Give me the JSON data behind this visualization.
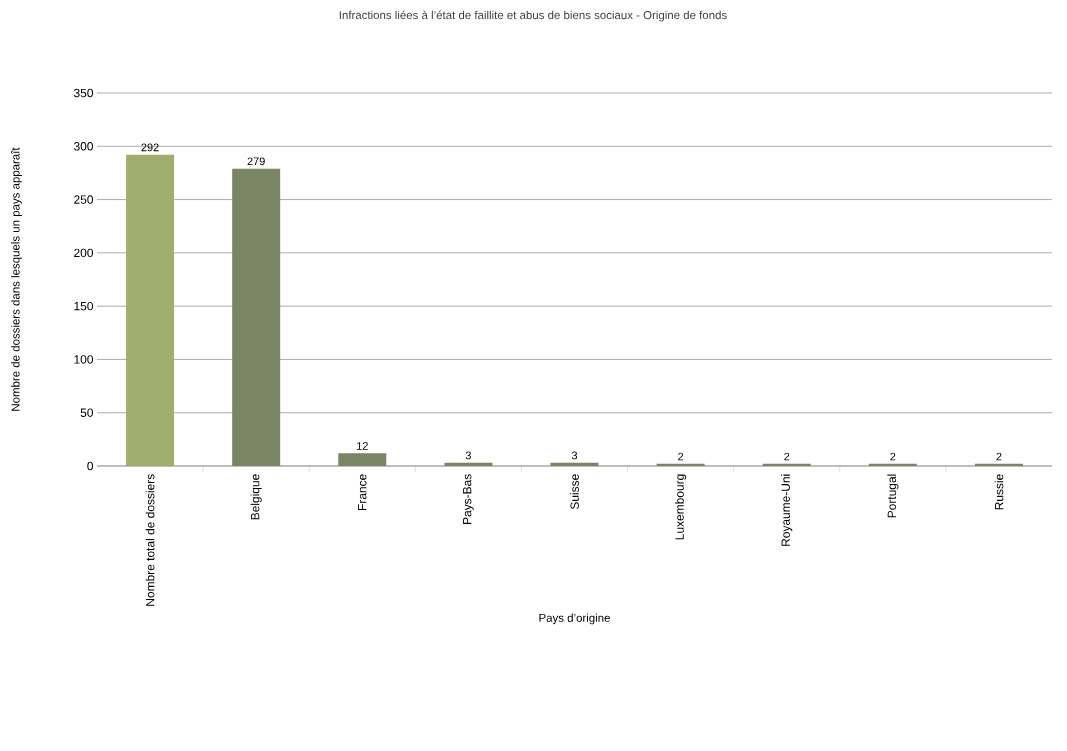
{
  "chart_data": {
    "type": "bar",
    "title": "Infractions liées à l’état de faillite et abus de biens sociaux - Origine de fonds",
    "xlabel": "Pays d’origine",
    "ylabel": "Nombre de dossiers dans lesquels un pays apparaît",
    "categories": [
      "Nombre total de dossiers",
      "Belgique",
      "France",
      "Pays-Bas",
      "Suisse",
      "Luxembourg",
      "Royaume-Uni",
      "Portugal",
      "Russie"
    ],
    "values": [
      292,
      279,
      12,
      3,
      3,
      2,
      2,
      2,
      2
    ],
    "colors": [
      "#a0ad6e",
      "#7a8566",
      "#7a8566",
      "#7a8566",
      "#7a8566",
      "#7a8566",
      "#7a8566",
      "#7a8566",
      "#7a8566"
    ],
    "ylim": [
      0,
      350
    ],
    "yticks": [
      0,
      50,
      100,
      150,
      200,
      250,
      300,
      350
    ],
    "grid": "y",
    "data_labels": true
  }
}
